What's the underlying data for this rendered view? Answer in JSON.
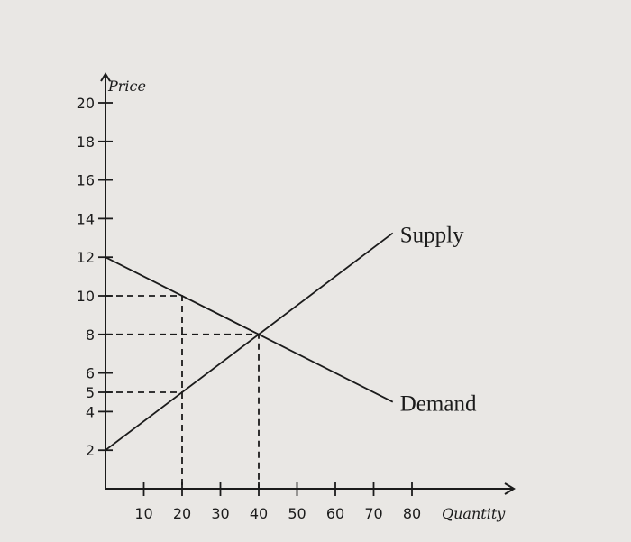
{
  "chart_data": {
    "type": "line",
    "title": "",
    "xlabel": "Quantity",
    "ylabel": "Price",
    "xlim": [
      0,
      90
    ],
    "ylim": [
      0,
      20
    ],
    "x_ticks": [
      10,
      20,
      30,
      40,
      50,
      60,
      70,
      80
    ],
    "x_tick_labels": [
      "10",
      "20",
      "30",
      "40",
      "50",
      "60",
      "70",
      "80"
    ],
    "y_ticks": [
      2,
      4,
      5,
      6,
      8,
      10,
      12,
      14,
      16,
      18,
      20
    ],
    "y_tick_labels": [
      "2",
      "4",
      "5",
      "6",
      "8",
      "10",
      "12",
      "14",
      "16",
      "18",
      "20"
    ],
    "grid": false,
    "series": [
      {
        "name": "Supply",
        "x": [
          0,
          75
        ],
        "y": [
          2,
          13.25
        ]
      },
      {
        "name": "Demand",
        "x": [
          0,
          75
        ],
        "y": [
          12,
          4.5
        ]
      }
    ],
    "guides": [
      {
        "from": [
          0,
          10
        ],
        "to": [
          20,
          10
        ],
        "then_to": [
          20,
          0
        ]
      },
      {
        "from": [
          0,
          8
        ],
        "to": [
          40,
          8
        ],
        "then_to": [
          40,
          0
        ]
      },
      {
        "from": [
          0,
          5
        ],
        "to": [
          20,
          5
        ]
      }
    ]
  }
}
